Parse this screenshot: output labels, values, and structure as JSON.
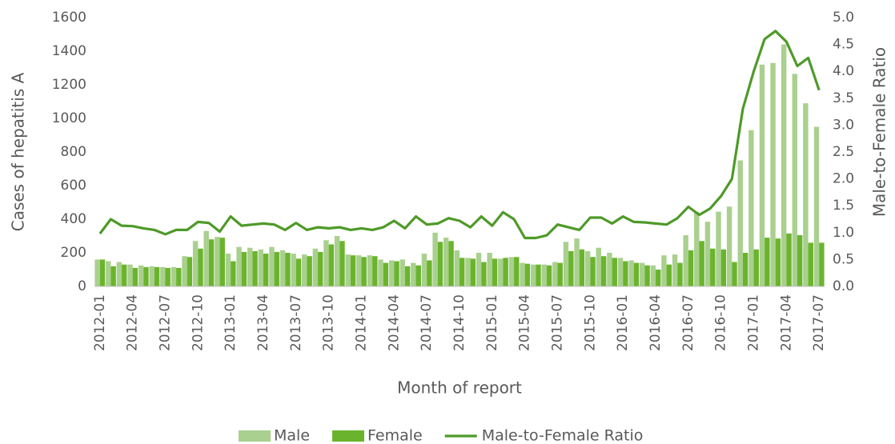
{
  "chart_data": {
    "type": "bar",
    "categories": [
      "2012-01",
      null,
      null,
      "2012-04",
      null,
      null,
      "2012-07",
      null,
      null,
      "2012-10",
      null,
      null,
      "2013-01",
      null,
      null,
      "2013-04",
      null,
      null,
      "2013-07",
      null,
      null,
      "2013-10",
      null,
      null,
      "2014-01",
      null,
      null,
      "2014-04",
      null,
      null,
      "2014-07",
      null,
      null,
      "2014-10",
      null,
      null,
      "2015-01",
      null,
      null,
      "2015-04",
      null,
      null,
      "2015-07",
      null,
      null,
      "2015-10",
      null,
      null,
      "2016-01",
      null,
      null,
      "2016-04",
      null,
      null,
      "2016-07",
      null,
      null,
      "2016-10",
      null,
      null,
      "2017-01",
      null,
      null,
      "2017-04",
      null,
      null,
      "2017-07"
    ],
    "series": [
      {
        "name": "Male",
        "color": "#a9d08e",
        "values": [
          160,
          150,
          145,
          130,
          125,
          120,
          115,
          115,
          180,
          270,
          330,
          295,
          195,
          235,
          230,
          220,
          235,
          215,
          195,
          190,
          225,
          275,
          300,
          190,
          185,
          185,
          160,
          155,
          160,
          140,
          195,
          320,
          290,
          215,
          170,
          200,
          200,
          165,
          175,
          140,
          130,
          130,
          145,
          265,
          285,
          210,
          230,
          200,
          170,
          155,
          140,
          125,
          185,
          190,
          305,
          445,
          385,
          445,
          475,
          750,
          930,
          1320,
          1330,
          1440,
          1265,
          1090,
          950
        ]
      },
      {
        "name": "Female",
        "color": "#6ab42d",
        "values": [
          160,
          120,
          130,
          110,
          115,
          115,
          110,
          110,
          175,
          225,
          280,
          290,
          150,
          205,
          210,
          195,
          205,
          200,
          165,
          180,
          205,
          250,
          270,
          185,
          175,
          180,
          140,
          150,
          120,
          125,
          155,
          265,
          270,
          170,
          165,
          145,
          165,
          170,
          175,
          135,
          130,
          125,
          140,
          210,
          220,
          175,
          180,
          170,
          150,
          140,
          125,
          100,
          130,
          140,
          215,
          270,
          225,
          220,
          145,
          200,
          220,
          290,
          285,
          315,
          305,
          260,
          260
        ]
      },
      {
        "name": "Male-to-Female Ratio",
        "type": "line",
        "axis": "y2",
        "color": "#4e9a28",
        "values": [
          0.98,
          1.25,
          1.13,
          1.12,
          1.08,
          1.05,
          0.97,
          1.05,
          1.05,
          1.2,
          1.18,
          1.02,
          1.3,
          1.13,
          1.15,
          1.17,
          1.15,
          1.05,
          1.18,
          1.05,
          1.1,
          1.08,
          1.1,
          1.05,
          1.08,
          1.05,
          1.1,
          1.22,
          1.08,
          1.3,
          1.15,
          1.17,
          1.27,
          1.22,
          1.1,
          1.3,
          1.13,
          1.38,
          1.25,
          0.9,
          0.9,
          0.95,
          1.15,
          1.1,
          1.05,
          1.28,
          1.28,
          1.17,
          1.3,
          1.2,
          1.19,
          1.17,
          1.15,
          1.27,
          1.48,
          1.33,
          1.45,
          1.68,
          2.0,
          3.3,
          4.0,
          4.6,
          4.75,
          4.55,
          4.1,
          4.25,
          3.65
        ]
      }
    ],
    "ylabel": "Cases of hepatitis A",
    "y2label": "Male-to-Female Ratio",
    "xlabel": "Month of report",
    "ylim": [
      0,
      1600
    ],
    "yticks": [
      0,
      200,
      400,
      600,
      800,
      1000,
      1200,
      1400,
      1600
    ],
    "y2lim": [
      0,
      5
    ],
    "y2ticks": [
      {
        "value": 0,
        "label": "0.0"
      },
      0.5,
      {
        "value": 1,
        "label": "1.0"
      },
      1.5,
      {
        "value": 2,
        "label": "2.0"
      },
      2.5,
      {
        "value": 3,
        "label": "3.0"
      },
      3.5,
      {
        "value": 4,
        "label": "4.0"
      },
      4.5,
      {
        "value": 5,
        "label": "5.0"
      }
    ],
    "legend": "bottom"
  }
}
